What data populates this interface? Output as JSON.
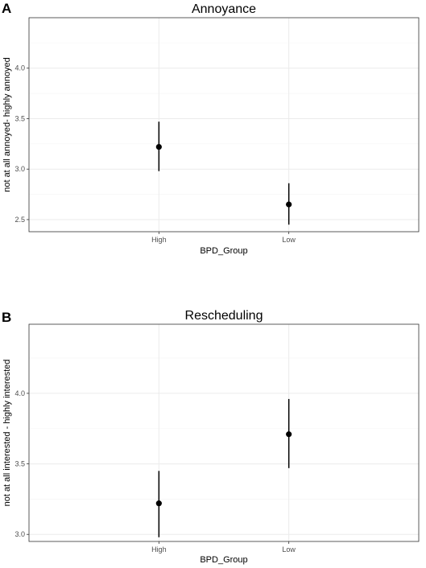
{
  "chart_data": [
    {
      "type": "scatter",
      "panel": "A",
      "title": "Annoyance",
      "xlabel": "BPD_Group",
      "ylabel": "not at all annoyed- highly annoyed",
      "categories": [
        "High",
        "Low"
      ],
      "values": [
        3.22,
        2.65
      ],
      "ymin": [
        2.98,
        2.45
      ],
      "ymax": [
        3.47,
        2.86
      ],
      "ylim": [
        2.38,
        4.5
      ],
      "yticks": [
        2.5,
        3.0,
        3.5,
        4.0
      ],
      "yticklabels": [
        "2.5",
        "3.0",
        "3.5",
        "4.0"
      ],
      "grid": true,
      "legend": "none"
    },
    {
      "type": "scatter",
      "panel": "B",
      "title": "Rescheduling",
      "xlabel": "BPD_Group",
      "ylabel": "not at all interested - highly interested",
      "categories": [
        "High",
        "Low"
      ],
      "values": [
        3.22,
        3.71
      ],
      "ymin": [
        2.98,
        3.47
      ],
      "ymax": [
        3.45,
        3.96
      ],
      "ylim": [
        2.95,
        4.49
      ],
      "yticks": [
        3.0,
        3.5,
        4.0
      ],
      "yticklabels": [
        "3.0",
        "3.5",
        "4.0"
      ],
      "grid": true,
      "legend": "none"
    }
  ]
}
